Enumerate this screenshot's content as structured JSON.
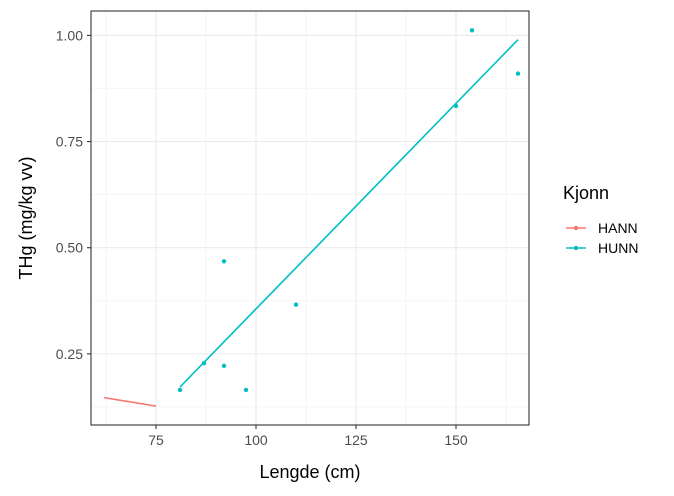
{
  "chart_data": {
    "type": "scatter",
    "title": "",
    "xlabel": "Lengde (cm)",
    "ylabel": "THg (mg/kg vv)",
    "xlim": [
      58.75,
      168.25
    ],
    "ylim": [
      0.0825,
      1.0575
    ],
    "xticks": [
      75,
      100,
      125,
      150
    ],
    "xtick_labels": [
      "75",
      "100",
      "125",
      "150"
    ],
    "yticks": [
      0.25,
      0.5,
      0.75,
      1.0
    ],
    "ytick_labels": [
      "0.25",
      "0.50",
      "0.75",
      "1.00"
    ],
    "grid": true,
    "legend": {
      "title": "Kjonn",
      "position": "right"
    },
    "series": [
      {
        "name": "HANN",
        "color": "#F8766D",
        "points": [],
        "fit_line": [
          [
            62,
            0.147
          ],
          [
            75,
            0.127
          ]
        ]
      },
      {
        "name": "HUNN",
        "color": "#00BFC4",
        "points": [
          [
            81,
            0.165
          ],
          [
            87,
            0.228
          ],
          [
            92,
            0.468
          ],
          [
            92,
            0.222
          ],
          [
            97.5,
            0.165
          ],
          [
            110,
            0.366
          ],
          [
            150,
            0.834
          ],
          [
            154,
            1.012
          ],
          [
            165.5,
            0.91
          ]
        ],
        "fit_line": [
          [
            81,
            0.172
          ],
          [
            165.5,
            0.99
          ]
        ]
      }
    ]
  }
}
